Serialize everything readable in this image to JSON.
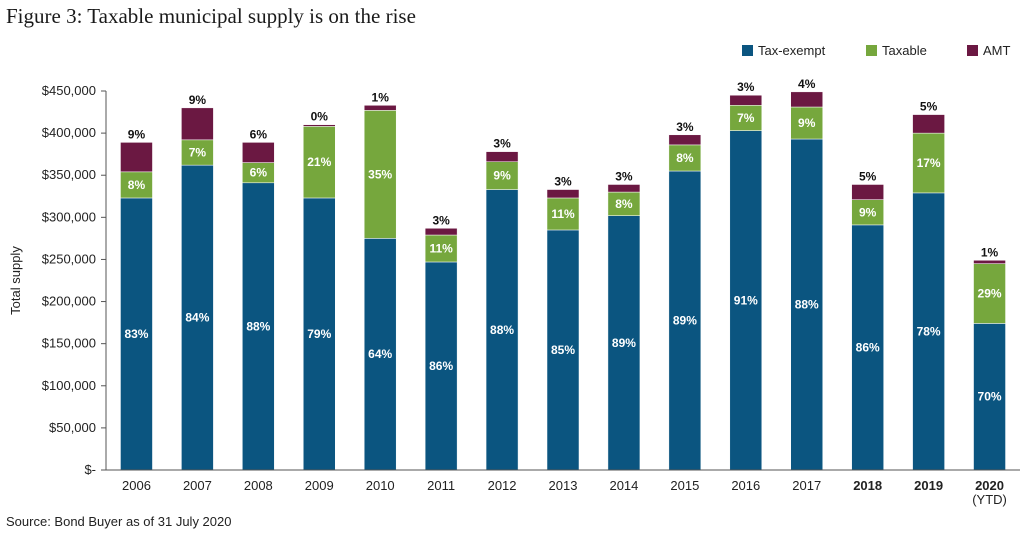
{
  "title": "Figure 3: Taxable municipal supply is on the rise",
  "source": "Source: Bond Buyer as of 31 July 2020",
  "colors": {
    "tax_exempt": "#0b5580",
    "taxable": "#76a73d",
    "amt": "#6b1842",
    "axis": "#555555"
  },
  "chart_data": {
    "type": "bar",
    "stacked": true,
    "ylabel": "Total supply",
    "xlabel": "",
    "ylim": [
      0,
      450000
    ],
    "y_ticks": [
      0,
      50000,
      100000,
      150000,
      200000,
      250000,
      300000,
      350000,
      400000,
      450000
    ],
    "y_tick_labels": [
      "$-",
      "$50,000",
      "$100,000",
      "$150,000",
      "$200,000",
      "$250,000",
      "$300,000",
      "$350,000",
      "$400,000",
      "$450,000"
    ],
    "legend_position": "top-right",
    "categories": [
      "2006",
      "2007",
      "2008",
      "2009",
      "2010",
      "2011",
      "2012",
      "2013",
      "2014",
      "2015",
      "2016",
      "2017",
      "2018",
      "2019",
      "2020"
    ],
    "category_sublabels": [
      "",
      "",
      "",
      "",
      "",
      "",
      "",
      "",
      "",
      "",
      "",
      "",
      "",
      "",
      "(YTD)"
    ],
    "bold_categories": [
      "2018",
      "2019",
      "2020"
    ],
    "series": [
      {
        "name": "Tax-exempt",
        "values": [
          323000,
          362000,
          341000,
          323000,
          275000,
          247000,
          333000,
          285000,
          302000,
          355000,
          403000,
          393000,
          291000,
          329000,
          174000
        ],
        "labels": [
          "83%",
          "84%",
          "88%",
          "79%",
          "64%",
          "86%",
          "88%",
          "85%",
          "89%",
          "89%",
          "91%",
          "88%",
          "86%",
          "78%",
          "70%"
        ]
      },
      {
        "name": "Taxable",
        "values": [
          31000,
          30000,
          24000,
          85000,
          152000,
          32000,
          33000,
          38000,
          28000,
          31000,
          30000,
          38000,
          30000,
          71000,
          71000
        ],
        "labels": [
          "8%",
          "7%",
          "6%",
          "21%",
          "35%",
          "11%",
          "9%",
          "11%",
          "8%",
          "8%",
          "7%",
          "9%",
          "9%",
          "17%",
          "29%"
        ]
      },
      {
        "name": "AMT",
        "values": [
          35000,
          38000,
          24000,
          2000,
          6000,
          8000,
          12000,
          10000,
          9000,
          12000,
          12000,
          18000,
          18000,
          22000,
          4000
        ],
        "labels": [
          "9%",
          "9%",
          "6%",
          "0%",
          "1%",
          "3%",
          "3%",
          "3%",
          "3%",
          "3%",
          "3%",
          "4%",
          "5%",
          "5%",
          "1%"
        ]
      }
    ]
  }
}
